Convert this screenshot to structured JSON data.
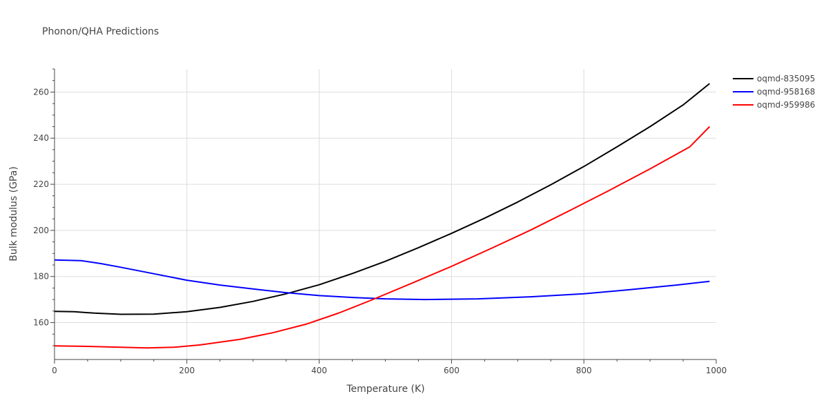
{
  "chart_data": {
    "type": "line",
    "title": "Phonon/QHA Predictions",
    "xlabel": "Temperature (K)",
    "ylabel": "Bulk modulus (GPa)",
    "xlim": [
      0,
      1000
    ],
    "ylim": [
      144,
      270
    ],
    "x_ticks": [
      0,
      200,
      400,
      600,
      800,
      1000
    ],
    "y_ticks": [
      160,
      180,
      200,
      220,
      240,
      260
    ],
    "grid": true,
    "legend_position": "top-right",
    "series": [
      {
        "name": "oqmd-835095",
        "color": "#000000",
        "x": [
          0,
          30,
          60,
          100,
          150,
          200,
          250,
          300,
          350,
          400,
          450,
          500,
          550,
          600,
          650,
          700,
          750,
          800,
          850,
          900,
          950,
          990
        ],
        "y": [
          164.9,
          164.7,
          164.1,
          163.6,
          163.7,
          164.7,
          166.6,
          169.2,
          172.5,
          176.4,
          181.3,
          186.6,
          192.5,
          198.7,
          205.3,
          212.3,
          219.8,
          227.7,
          236.2,
          245.0,
          254.4,
          263.7
        ]
      },
      {
        "name": "oqmd-958168",
        "color": "#0000ff",
        "x": [
          0,
          40,
          70,
          100,
          150,
          200,
          250,
          300,
          350,
          400,
          450,
          500,
          560,
          640,
          720,
          800,
          870,
          940,
          990
        ],
        "y": [
          187.2,
          186.9,
          185.6,
          184.0,
          181.2,
          178.4,
          176.3,
          174.6,
          173.0,
          171.7,
          170.9,
          170.3,
          170.0,
          170.3,
          171.2,
          172.5,
          174.3,
          176.3,
          177.9
        ]
      },
      {
        "name": "oqmd-959986",
        "color": "#ff0000",
        "x": [
          0,
          50,
          100,
          140,
          180,
          220,
          280,
          330,
          380,
          430,
          480,
          540,
          600,
          660,
          720,
          780,
          840,
          900,
          960,
          990
        ],
        "y": [
          149.9,
          149.7,
          149.3,
          149.0,
          149.3,
          150.3,
          152.7,
          155.6,
          159.3,
          164.2,
          169.9,
          177.1,
          184.4,
          192.2,
          200.2,
          208.8,
          217.6,
          226.7,
          236.2,
          245.0
        ]
      }
    ]
  }
}
